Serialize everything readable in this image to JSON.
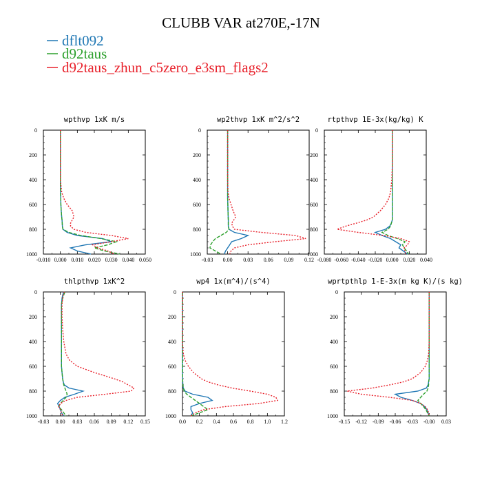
{
  "title": "CLUBB VAR at270E,-17N",
  "legend": [
    {
      "label": "dflt092",
      "color": "#1f77b4"
    },
    {
      "label": "d92taus",
      "color": "#2ca02c"
    },
    {
      "label": "d92taus_zhun_c5zero_e3sm_flags2",
      "color": "#e8202a"
    }
  ],
  "chart_data": [
    {
      "type": "line",
      "title": "wpthvp   1xK m/s",
      "xlim": [
        -0.01,
        0.05
      ],
      "xticks": [
        "-0.010",
        "0.000",
        "0.010",
        "0.020",
        "0.030",
        "0.040",
        "0.050"
      ],
      "ylim": [
        0,
        1000
      ],
      "yticks": [
        "0",
        "200",
        "400",
        "600",
        "800",
        "1000"
      ],
      "y": [
        0,
        100,
        200,
        300,
        400,
        500,
        550,
        600,
        650,
        700,
        725,
        750,
        775,
        800,
        825,
        850,
        875,
        900,
        925,
        950,
        975,
        1000
      ],
      "series": [
        {
          "name": "dflt092",
          "values": [
            0.0,
            0.0,
            0.0,
            0.0,
            0.0,
            0.0001,
            0.0002,
            0.0003,
            0.0005,
            0.0008,
            0.001,
            0.0011,
            0.0012,
            0.0015,
            0.004,
            0.01,
            0.025,
            0.03,
            0.015,
            0.006,
            0.01,
            0.018
          ]
        },
        {
          "name": "d92taus",
          "values": [
            0.0,
            0.0,
            0.0,
            0.0,
            0.0,
            0.0001,
            0.0002,
            0.0003,
            0.0005,
            0.0008,
            0.001,
            0.0011,
            0.0012,
            0.0015,
            0.005,
            0.012,
            0.024,
            0.033,
            0.028,
            0.02,
            0.026,
            0.035
          ]
        },
        {
          "name": "d92taus_zhun_c5zero_e3sm_flags2",
          "values": [
            0.0,
            0.0,
            0.0,
            0.0,
            0.0,
            0.0008,
            0.002,
            0.004,
            0.007,
            0.008,
            0.007,
            0.006,
            0.006,
            0.008,
            0.015,
            0.03,
            0.04,
            0.03,
            0.019,
            0.022,
            0.028,
            0.032
          ]
        }
      ]
    },
    {
      "type": "line",
      "title": "wp2thvp   1xK m^2/s^2",
      "xlim": [
        -0.03,
        0.12
      ],
      "xticks": [
        "-0.03",
        "0.00",
        "0.03",
        "0.06",
        "0.09",
        "0.12"
      ],
      "ylim": [
        0,
        1000
      ],
      "yticks": [
        "0",
        "200",
        "400",
        "600",
        "800",
        "1000"
      ],
      "y": [
        0,
        100,
        200,
        300,
        400,
        500,
        550,
        600,
        650,
        700,
        725,
        750,
        775,
        800,
        825,
        850,
        875,
        900,
        925,
        950,
        975,
        1000
      ],
      "series": [
        {
          "name": "dflt092",
          "values": [
            0.0,
            0.0,
            0.0,
            0.0,
            0.0,
            0.0,
            0.0,
            0.0003,
            0.0005,
            0.0008,
            0.001,
            0.001,
            0.001,
            0.002,
            0.01,
            0.03,
            0.02,
            0.006,
            0.003,
            0.0,
            -0.003,
            -0.005
          ]
        },
        {
          "name": "d92taus",
          "values": [
            0.0,
            0.0,
            0.0,
            0.0,
            0.0,
            0.0,
            0.0,
            0.0003,
            0.0005,
            0.0008,
            0.001,
            0.001,
            0.001,
            0.002,
            -0.002,
            -0.01,
            -0.018,
            -0.022,
            -0.025,
            -0.026,
            -0.018,
            -0.01
          ]
        },
        {
          "name": "d92taus_zhun_c5zero_e3sm_flags2",
          "values": [
            0.0,
            0.0,
            0.0,
            0.0,
            0.0,
            0.0005,
            0.002,
            0.005,
            0.008,
            0.012,
            0.009,
            0.006,
            0.007,
            0.01,
            0.05,
            0.1,
            0.115,
            0.07,
            0.03,
            0.01,
            0.005,
            0.003
          ]
        }
      ]
    },
    {
      "type": "line",
      "title": "rtpthvp   1E-3x(kg/kg) K",
      "xlim": [
        -0.08,
        0.04
      ],
      "xticks": [
        "-0.080",
        "-0.060",
        "-0.040",
        "-0.020",
        "0.000",
        "0.020",
        "0.040"
      ],
      "ylim": [
        0,
        1000
      ],
      "yticks": [
        "0",
        "200",
        "400",
        "600",
        "800",
        "1000"
      ],
      "y": [
        0,
        100,
        200,
        300,
        400,
        500,
        550,
        600,
        650,
        700,
        725,
        750,
        775,
        800,
        825,
        850,
        875,
        900,
        925,
        950,
        975,
        1000
      ],
      "series": [
        {
          "name": "dflt092",
          "values": [
            0.0,
            0.0,
            0.0,
            0.0,
            0.0,
            0.0,
            0.0,
            0.0,
            0.0,
            0.0,
            0.0,
            -0.001,
            -0.003,
            -0.008,
            -0.02,
            -0.012,
            -0.002,
            0.004,
            0.01,
            0.008,
            0.013,
            0.018
          ]
        },
        {
          "name": "d92taus",
          "values": [
            0.0,
            0.0,
            0.0,
            0.0,
            0.0,
            0.0,
            0.0,
            0.0,
            0.0,
            0.0,
            0.0,
            -0.001,
            -0.002,
            -0.005,
            -0.012,
            -0.005,
            0.006,
            0.015,
            0.012,
            0.014,
            0.017,
            0.019
          ]
        },
        {
          "name": "d92taus_zhun_c5zero_e3sm_flags2",
          "values": [
            0.0,
            0.0,
            0.0,
            0.0,
            -0.0005,
            -0.002,
            -0.004,
            -0.008,
            -0.014,
            -0.022,
            -0.03,
            -0.042,
            -0.055,
            -0.065,
            -0.04,
            -0.01,
            0.01,
            0.02,
            0.018,
            0.014,
            0.015,
            0.016
          ]
        }
      ]
    },
    {
      "type": "line",
      "title": "thlpthvp   1xK^2",
      "xlim": [
        -0.03,
        0.15
      ],
      "xticks": [
        "-0.03",
        "0.00",
        "0.03",
        "0.06",
        "0.09",
        "0.12",
        "0.15"
      ],
      "ylim": [
        0,
        1000
      ],
      "yticks": [
        "0",
        "200",
        "400",
        "600",
        "800",
        "1000"
      ],
      "y": [
        0,
        25,
        50,
        100,
        200,
        300,
        400,
        500,
        550,
        600,
        650,
        700,
        725,
        750,
        775,
        800,
        825,
        850,
        875,
        900,
        925,
        950,
        975,
        1000
      ],
      "series": [
        {
          "name": "dflt092",
          "values": [
            0.006,
            0.004,
            0.003,
            0.002,
            0.002,
            0.002,
            0.002,
            0.002,
            0.002,
            0.002,
            0.003,
            0.004,
            0.005,
            0.007,
            0.015,
            0.04,
            0.025,
            0.008,
            0.0,
            -0.005,
            -0.002,
            0.0,
            0.002,
            0.006
          ]
        },
        {
          "name": "d92taus",
          "values": [
            0.008,
            0.006,
            0.004,
            0.002,
            0.002,
            0.002,
            0.002,
            0.002,
            0.002,
            0.002,
            0.003,
            0.004,
            0.005,
            0.006,
            0.008,
            0.01,
            0.012,
            0.01,
            0.005,
            0.0,
            -0.003,
            0.002,
            0.006,
            0.01
          ]
        },
        {
          "name": "d92taus_zhun_c5zero_e3sm_flags2",
          "values": [
            0.007,
            0.005,
            0.004,
            0.003,
            0.003,
            0.004,
            0.006,
            0.01,
            0.016,
            0.03,
            0.06,
            0.095,
            0.11,
            0.12,
            0.13,
            0.125,
            0.08,
            0.03,
            0.01,
            0.0,
            -0.003,
            0.0,
            0.002,
            0.004
          ]
        }
      ]
    },
    {
      "type": "line",
      "title": "wp4   1x(m^4)/(s^4)",
      "xlim": [
        0.0,
        1.2
      ],
      "xticks": [
        "0.0",
        "0.2",
        "0.4",
        "0.6",
        "0.8",
        "1.0",
        "1.2"
      ],
      "ylim": [
        0,
        1000
      ],
      "yticks": [
        "0",
        "200",
        "400",
        "600",
        "800",
        "1000"
      ],
      "y": [
        0,
        100,
        200,
        300,
        400,
        500,
        550,
        600,
        650,
        700,
        725,
        750,
        775,
        800,
        825,
        850,
        875,
        900,
        925,
        950,
        975,
        1000
      ],
      "series": [
        {
          "name": "dflt092",
          "values": [
            0.0,
            0.0,
            0.0,
            0.0,
            0.0,
            0.0,
            0.0,
            0.001,
            0.001,
            0.002,
            0.003,
            0.005,
            0.01,
            0.03,
            0.12,
            0.3,
            0.35,
            0.2,
            0.1,
            0.1,
            0.12,
            0.1
          ]
        },
        {
          "name": "d92taus",
          "values": [
            0.0,
            0.0,
            0.0,
            0.0,
            0.0,
            0.0,
            0.0,
            0.001,
            0.001,
            0.002,
            0.003,
            0.005,
            0.01,
            0.02,
            0.05,
            0.1,
            0.15,
            0.2,
            0.25,
            0.3,
            0.2,
            0.1
          ]
        },
        {
          "name": "d92taus_zhun_c5zero_e3sm_flags2",
          "values": [
            0.0,
            0.0,
            0.0,
            0.0,
            0.0,
            0.01,
            0.03,
            0.07,
            0.13,
            0.22,
            0.3,
            0.42,
            0.58,
            0.8,
            1.0,
            1.1,
            1.12,
            0.9,
            0.5,
            0.25,
            0.15,
            0.1
          ]
        }
      ]
    },
    {
      "type": "line",
      "title": "wprtpthlp   1-E-3x(m kg K)/(s kg)",
      "xlim": [
        -0.15,
        0.03
      ],
      "xticks": [
        "-0.15",
        "-0.12",
        "-0.09",
        "-0.06",
        "-0.03",
        "-0.00",
        "0.03"
      ],
      "ylim": [
        0,
        1000
      ],
      "yticks": [
        "0",
        "200",
        "400",
        "600",
        "800",
        "1000"
      ],
      "y": [
        0,
        100,
        200,
        300,
        400,
        500,
        550,
        600,
        650,
        700,
        725,
        750,
        775,
        800,
        825,
        850,
        875,
        900,
        925,
        950,
        975,
        1000
      ],
      "series": [
        {
          "name": "dflt092",
          "values": [
            0.0,
            0.0,
            0.0,
            0.0,
            0.0,
            0.0,
            0.0,
            0.0,
            0.0,
            0.0,
            -0.001,
            -0.002,
            -0.005,
            -0.02,
            -0.06,
            -0.05,
            -0.03,
            -0.015,
            -0.008,
            -0.004,
            -0.002,
            0.0
          ]
        },
        {
          "name": "d92taus",
          "values": [
            0.0,
            0.0,
            0.0,
            0.0,
            0.0,
            0.0,
            0.0,
            0.0,
            0.0,
            0.0,
            -0.001,
            -0.001,
            -0.002,
            -0.004,
            -0.01,
            -0.015,
            -0.02,
            -0.015,
            -0.01,
            -0.006,
            -0.003,
            0.0
          ]
        },
        {
          "name": "d92taus_zhun_c5zero_e3sm_flags2",
          "values": [
            0.0,
            0.0,
            0.0,
            0.0,
            0.0,
            -0.001,
            -0.003,
            -0.007,
            -0.015,
            -0.03,
            -0.045,
            -0.07,
            -0.1,
            -0.145,
            -0.12,
            -0.07,
            -0.03,
            -0.015,
            -0.007,
            -0.003,
            -0.001,
            0.0
          ]
        }
      ]
    }
  ]
}
